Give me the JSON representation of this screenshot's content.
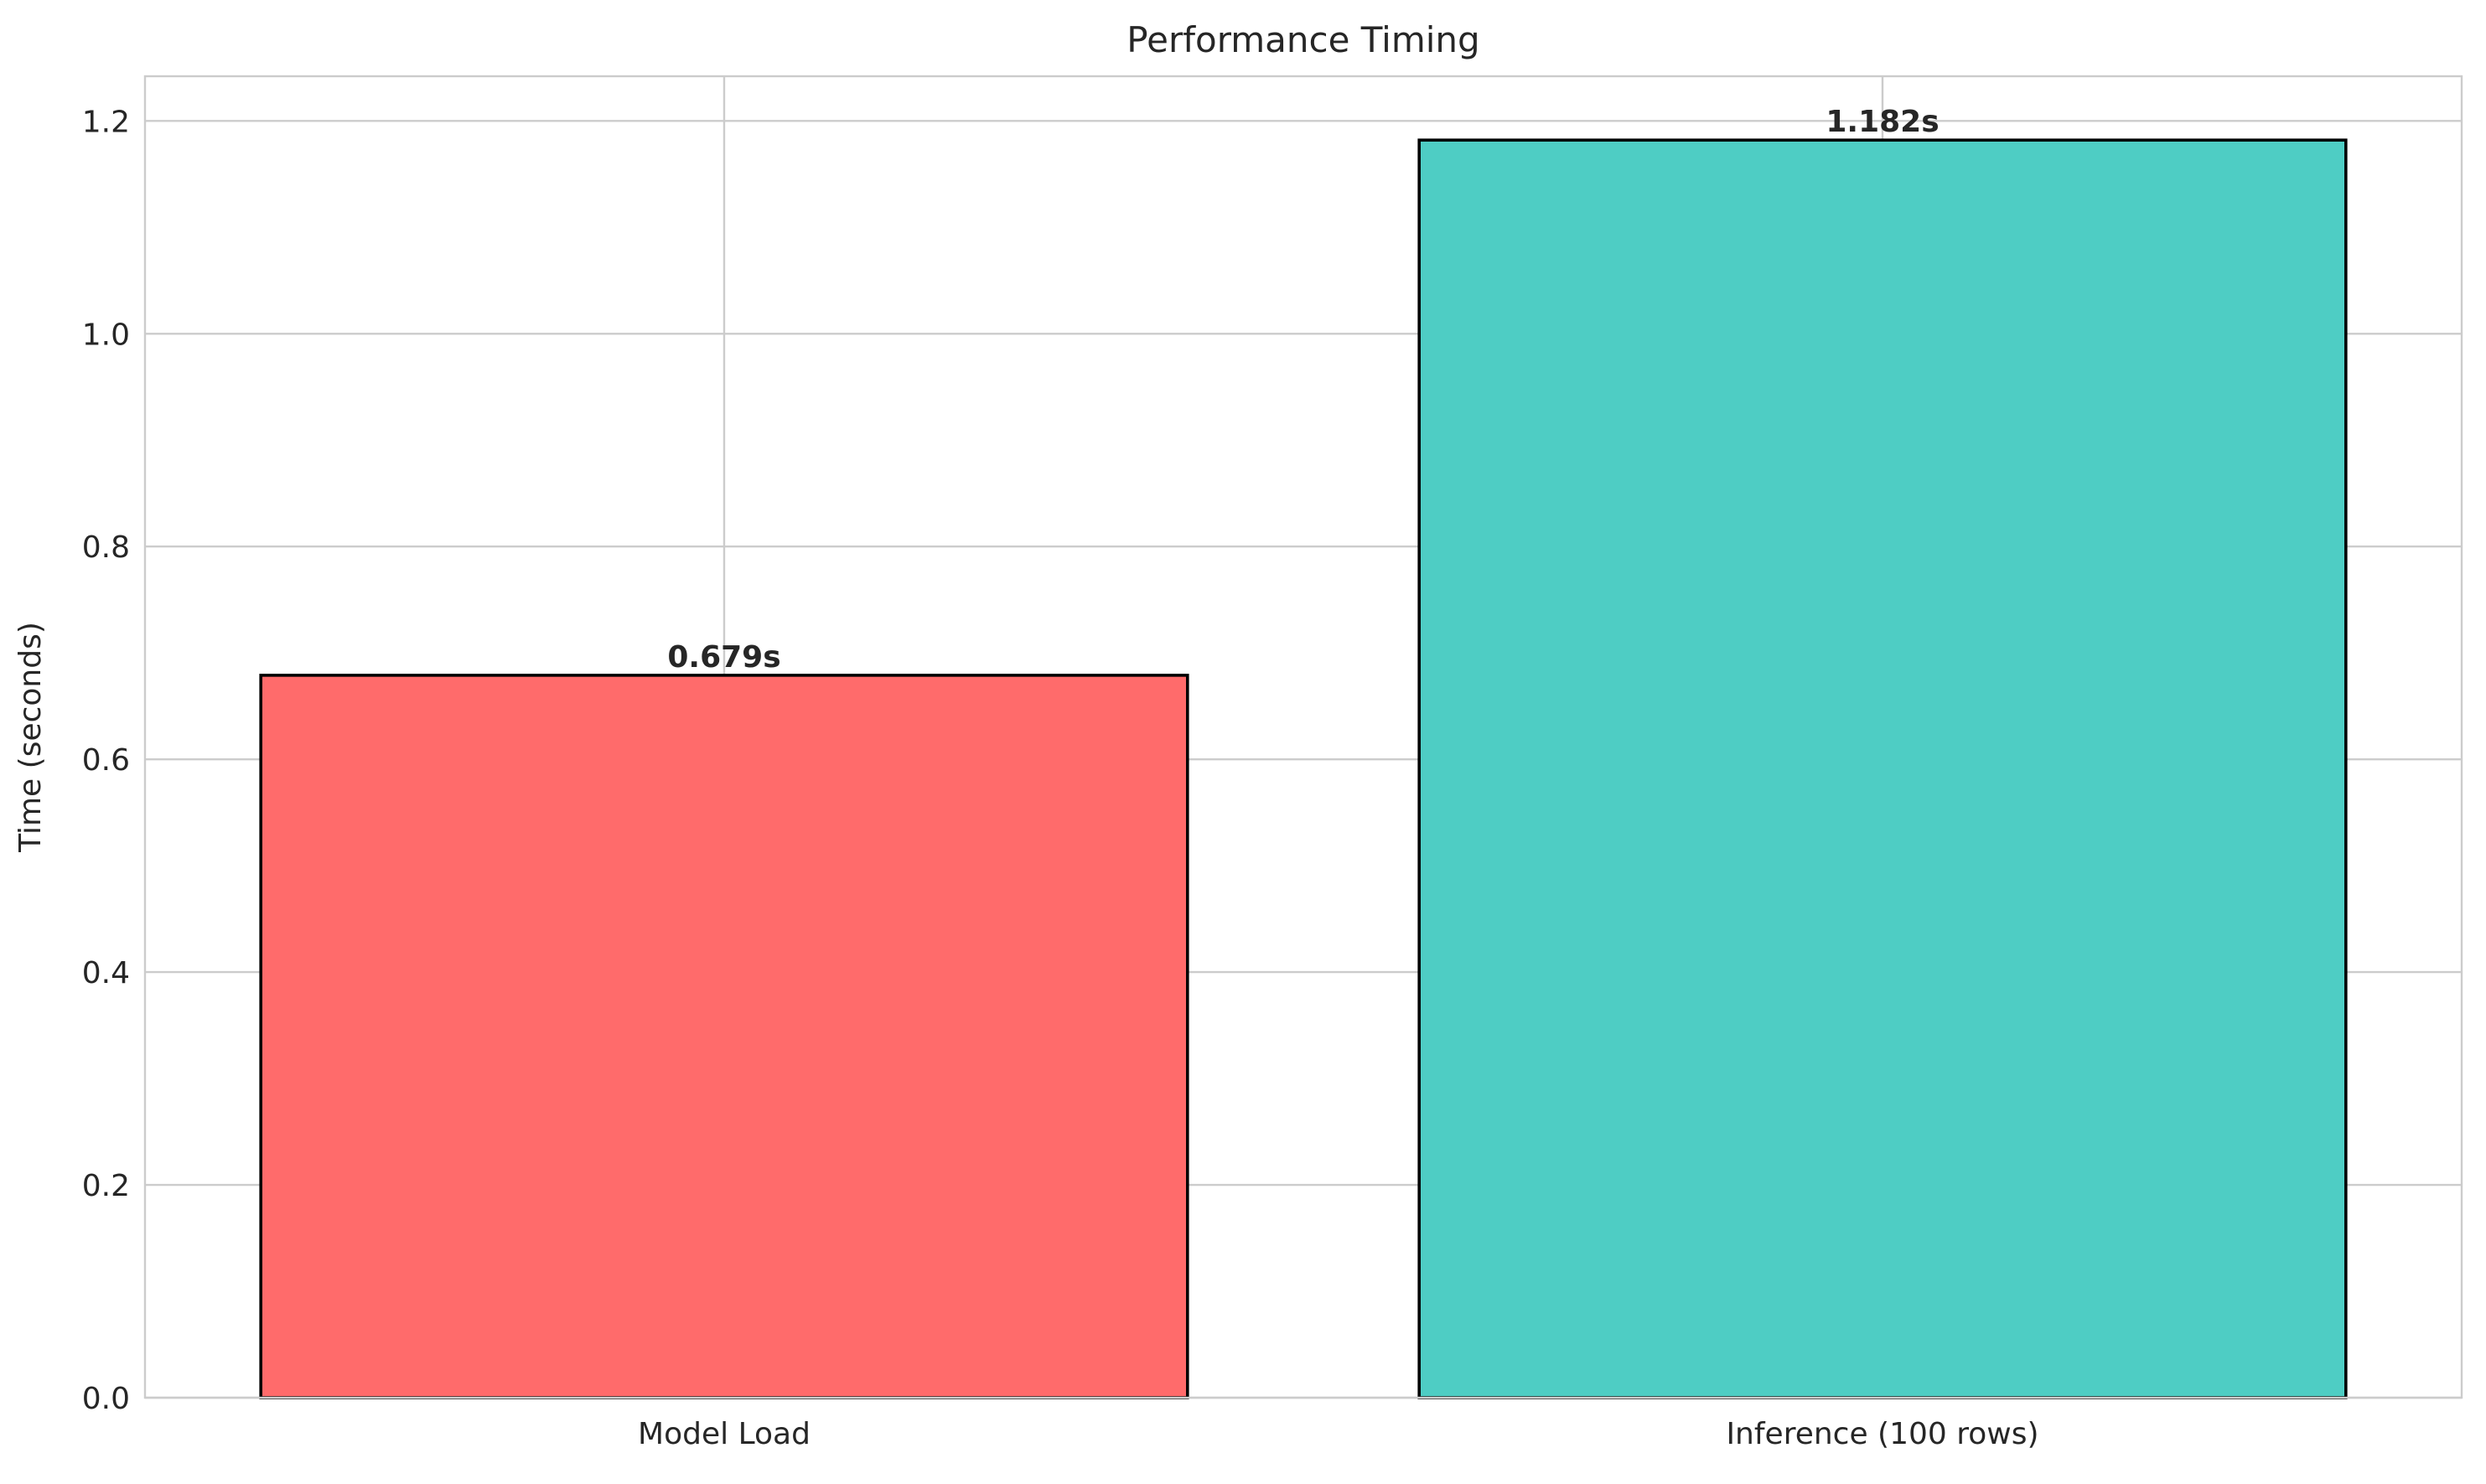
{
  "chart_data": {
    "type": "bar",
    "title": "Performance Timing",
    "xlabel": "",
    "ylabel": "Time (seconds)",
    "categories": [
      "Model Load",
      "Inference (100 rows)"
    ],
    "values": [
      0.679,
      1.182
    ],
    "data_labels": [
      "0.679s",
      "1.182s"
    ],
    "colors": [
      "#ff6b6b",
      "#4ecdc4"
    ],
    "edge_color": "#000000",
    "ylim": [
      0,
      1.242
    ],
    "yticks": [
      0.0,
      0.2,
      0.4,
      0.6,
      0.8,
      1.0,
      1.2
    ],
    "ytick_labels": [
      "0.0",
      "0.2",
      "0.4",
      "0.6",
      "0.8",
      "1.0",
      "1.2"
    ],
    "grid": true,
    "legend": "none"
  }
}
